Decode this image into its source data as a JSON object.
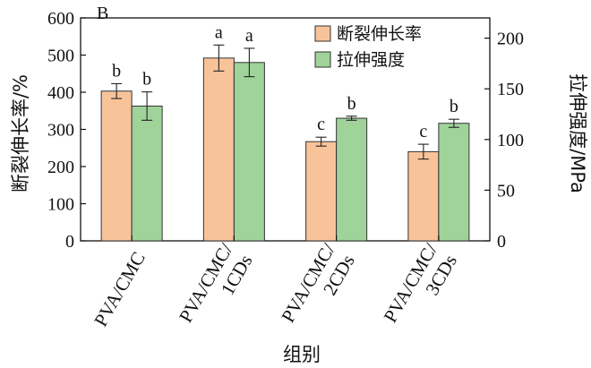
{
  "chart_data": {
    "type": "bar",
    "panel_label": "B",
    "categories": [
      [
        "PVA/CMC"
      ],
      [
        "PVA/CMC/",
        "1CDs"
      ],
      [
        "PVA/CMC/",
        "2CDs"
      ],
      [
        "PVA/CMC/",
        "3CDs"
      ]
    ],
    "xlabel": "组别",
    "ylabel_left": "断裂伸长率/%",
    "ylabel_right": "拉伸强度/MPa",
    "ylim_left": [
      0,
      600
    ],
    "ylim_right": [
      0,
      220
    ],
    "yticks_left": [
      "0",
      "100",
      "200",
      "300",
      "400",
      "500",
      "600"
    ],
    "yticks_right": [
      "0",
      "50",
      "100",
      "150",
      "200"
    ],
    "legend_position": "top-center",
    "series": [
      {
        "name": "断裂伸长率",
        "axis": "left",
        "color": "#f9c39a",
        "values": [
          403,
          492,
          267,
          240
        ],
        "errors": [
          20,
          35,
          12,
          20
        ],
        "labels": [
          "b",
          "a",
          "c",
          "c"
        ]
      },
      {
        "name": "拉伸强度",
        "axis": "right",
        "color": "#9fd39a",
        "values": [
          133,
          176,
          121,
          116
        ],
        "errors": [
          14,
          14,
          2,
          4
        ],
        "labels": [
          "b",
          "a",
          "b",
          "b"
        ]
      }
    ]
  }
}
